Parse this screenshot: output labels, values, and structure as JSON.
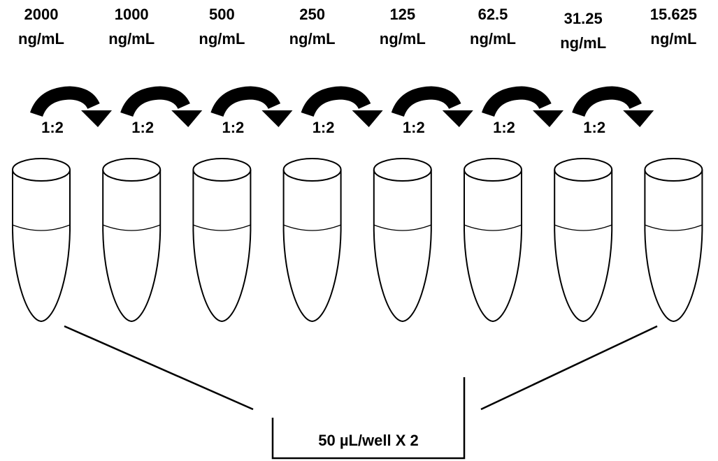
{
  "tubes": [
    {
      "concentration": "2000",
      "unit": "ng/mL"
    },
    {
      "concentration": "1000",
      "unit": "ng/mL"
    },
    {
      "concentration": "500",
      "unit": "ng/mL"
    },
    {
      "concentration": "250",
      "unit": "ng/mL"
    },
    {
      "concentration": "125",
      "unit": "ng/mL"
    },
    {
      "concentration": "62.5",
      "unit": "ng/mL"
    },
    {
      "concentration": "31.25",
      "unit": "ng/mL"
    },
    {
      "concentration": "15.625",
      "unit": "ng/mL"
    }
  ],
  "dilutions": [
    "1:2",
    "1:2",
    "1:2",
    "1:2",
    "1:2",
    "1:2",
    "1:2"
  ],
  "transfer_label": "50 µL/well X 2"
}
